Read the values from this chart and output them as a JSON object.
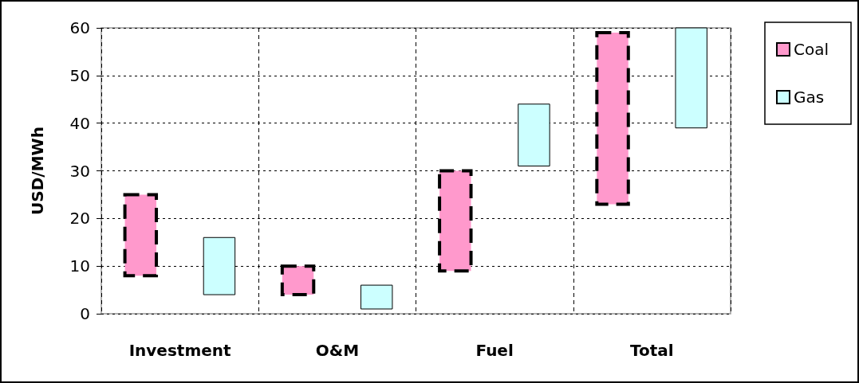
{
  "chart_data": {
    "type": "bar",
    "ylabel": "USD/MWh",
    "categories": [
      "Investment",
      "O&M",
      "Fuel",
      "Total"
    ],
    "series": [
      {
        "name": "Coal",
        "color": "#ff99cc",
        "line_style": "dashed",
        "base": [
          8,
          4,
          9,
          23
        ],
        "values": [
          17,
          6,
          21,
          36
        ]
      },
      {
        "name": "Gas",
        "color": "#ccffff",
        "line_style": "solid",
        "base": [
          4,
          1,
          31,
          39
        ],
        "values": [
          12,
          5,
          13,
          21
        ]
      }
    ],
    "ylim": [
      0,
      60
    ],
    "yticks": [
      0,
      10,
      20,
      30,
      40,
      50,
      60
    ],
    "grid": true,
    "legend": "right"
  }
}
